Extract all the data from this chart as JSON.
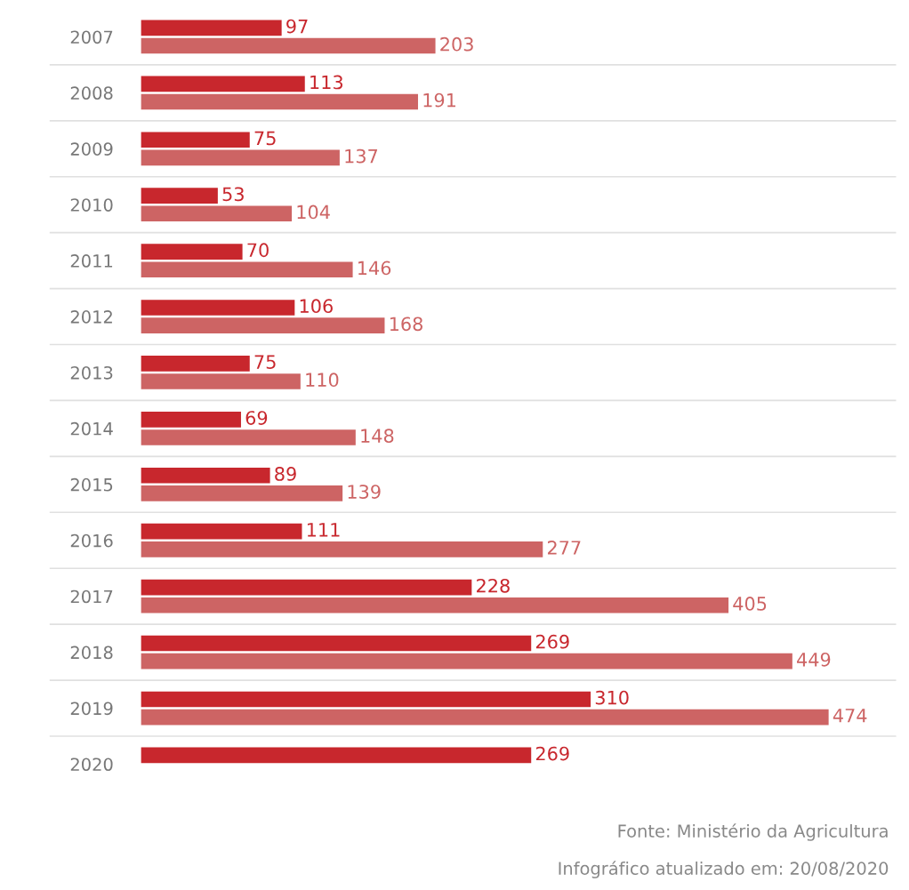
{
  "chart_data": {
    "type": "bar",
    "orientation": "horizontal",
    "categories": [
      "2007",
      "2008",
      "2009",
      "2010",
      "2011",
      "2012",
      "2013",
      "2014",
      "2015",
      "2016",
      "2017",
      "2018",
      "2019",
      "2020"
    ],
    "series": [
      {
        "color": "#c8272d",
        "values": [
          97,
          113,
          75,
          53,
          70,
          106,
          75,
          69,
          89,
          111,
          228,
          269,
          310,
          269
        ]
      },
      {
        "color": "#cd6464",
        "values": [
          203,
          191,
          137,
          104,
          146,
          168,
          110,
          148,
          139,
          277,
          405,
          449,
          474,
          null
        ]
      }
    ],
    "xlim": [
      0,
      520
    ],
    "tick_labels": "y",
    "data_labels": true,
    "grid": "y",
    "annotations": [
      "Fonte: Ministério da Agricultura",
      "Infográfico atualizado em: 20/08/2020"
    ]
  }
}
